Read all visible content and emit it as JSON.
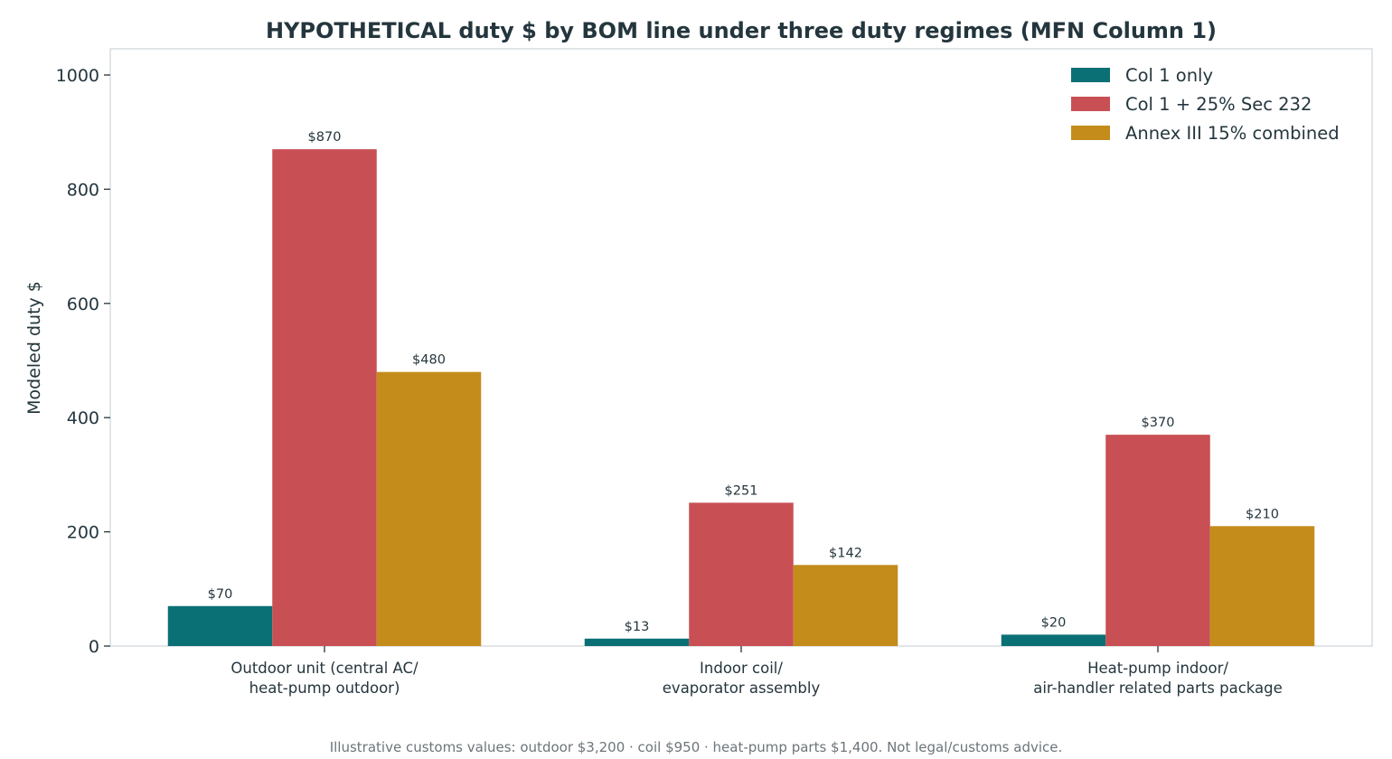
{
  "chart_data": {
    "type": "bar",
    "title": "HYPOTHETICAL duty $ by BOM line under three duty regimes (MFN Column 1)",
    "xlabel": "",
    "ylabel": "Modeled duty $",
    "ylim": [
      0,
      1050
    ],
    "yticks": [
      0,
      200,
      400,
      600,
      800,
      1000
    ],
    "grid": false,
    "legend_position": "top-right",
    "categories": [
      [
        "Outdoor unit (central AC/",
        "heat-pump outdoor)"
      ],
      [
        "Indoor coil/",
        "evaporator assembly"
      ],
      [
        "Heat-pump indoor/",
        "air-handler related parts package"
      ]
    ],
    "series": [
      {
        "name": "Col 1 only",
        "color": "#0b7075",
        "values": [
          70,
          13,
          20
        ],
        "labels": [
          "$70",
          "$13",
          "$20"
        ]
      },
      {
        "name": "Col 1 + 25% Sec 232",
        "color": "#c84f53",
        "values": [
          870,
          251,
          370
        ],
        "labels": [
          "$870",
          "$251",
          "$370"
        ]
      },
      {
        "name": "Annex III 15% combined",
        "color": "#c48c1b",
        "values": [
          480,
          142,
          210
        ],
        "labels": [
          "$480",
          "$142",
          "$210"
        ]
      }
    ],
    "footnote": "Illustrative customs values: outdoor $3,200 · coil $950 · heat-pump parts $1,400. Not legal/customs advice."
  }
}
